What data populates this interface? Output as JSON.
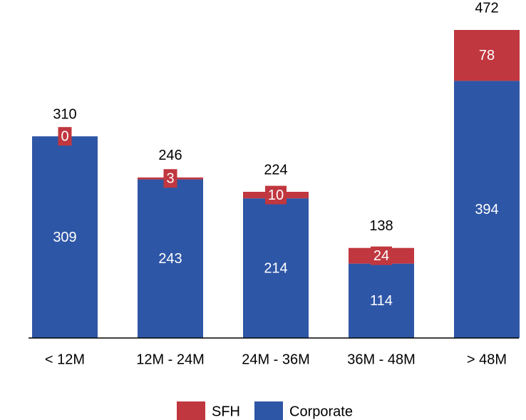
{
  "chart_data": {
    "type": "stacked_bar",
    "categories": [
      "< 12M",
      "12M - 24M",
      "24M - 36M",
      "36M - 48M",
      "> 48M"
    ],
    "series": [
      {
        "name": "Corporate",
        "color": "#2e56a6",
        "values": [
          309,
          243,
          214,
          114,
          394
        ]
      },
      {
        "name": "SFH",
        "color": "#c0373f",
        "values": [
          0,
          3,
          10,
          24,
          78
        ]
      }
    ],
    "totals": [
      310,
      246,
      224,
      138,
      472
    ],
    "legend": "bottom"
  }
}
